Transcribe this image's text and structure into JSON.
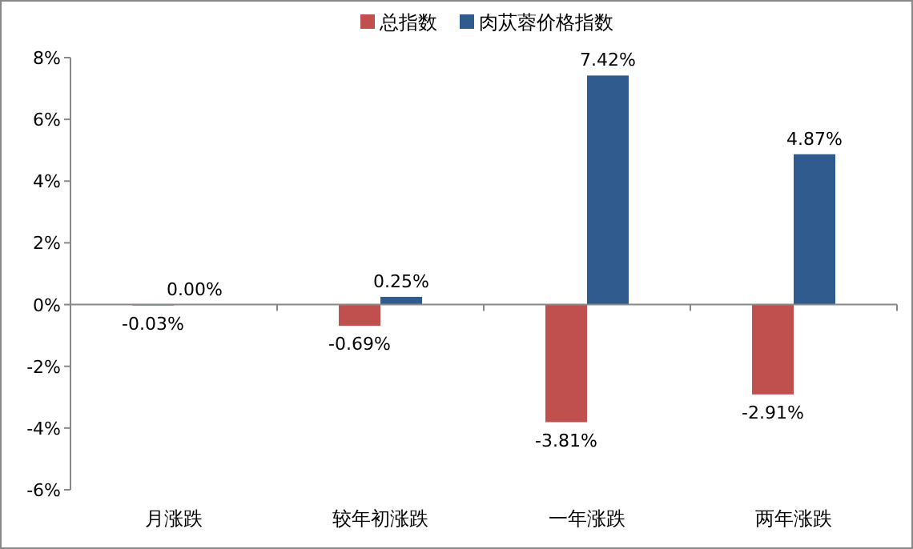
{
  "chart_data": {
    "type": "bar",
    "categories": [
      "月涨跌",
      "较年初涨跌",
      "一年涨跌",
      "两年涨跌"
    ],
    "series": [
      {
        "name": "总指数",
        "color": "#c0504d",
        "values": [
          -0.03,
          -0.69,
          -3.81,
          -2.91
        ],
        "value_labels": [
          "-0.03%",
          "-0.69%",
          "-3.81%",
          "-2.91%"
        ]
      },
      {
        "name": "肉苁蓉价格指数",
        "color": "#2f5b8f",
        "values": [
          0.0,
          0.25,
          7.42,
          4.87
        ],
        "value_labels": [
          "0.00%",
          "0.25%",
          "7.42%",
          "4.87%"
        ]
      }
    ],
    "ylim": [
      -6,
      8
    ],
    "yticks": [
      {
        "value": -6,
        "label": "-6%"
      },
      {
        "value": -4,
        "label": "-4%"
      },
      {
        "value": -2,
        "label": "-2%"
      },
      {
        "value": 0,
        "label": "0%"
      },
      {
        "value": 2,
        "label": "2%"
      },
      {
        "value": 4,
        "label": "4%"
      },
      {
        "value": 6,
        "label": "6%"
      },
      {
        "value": 8,
        "label": "8%"
      }
    ],
    "legend": "top"
  }
}
